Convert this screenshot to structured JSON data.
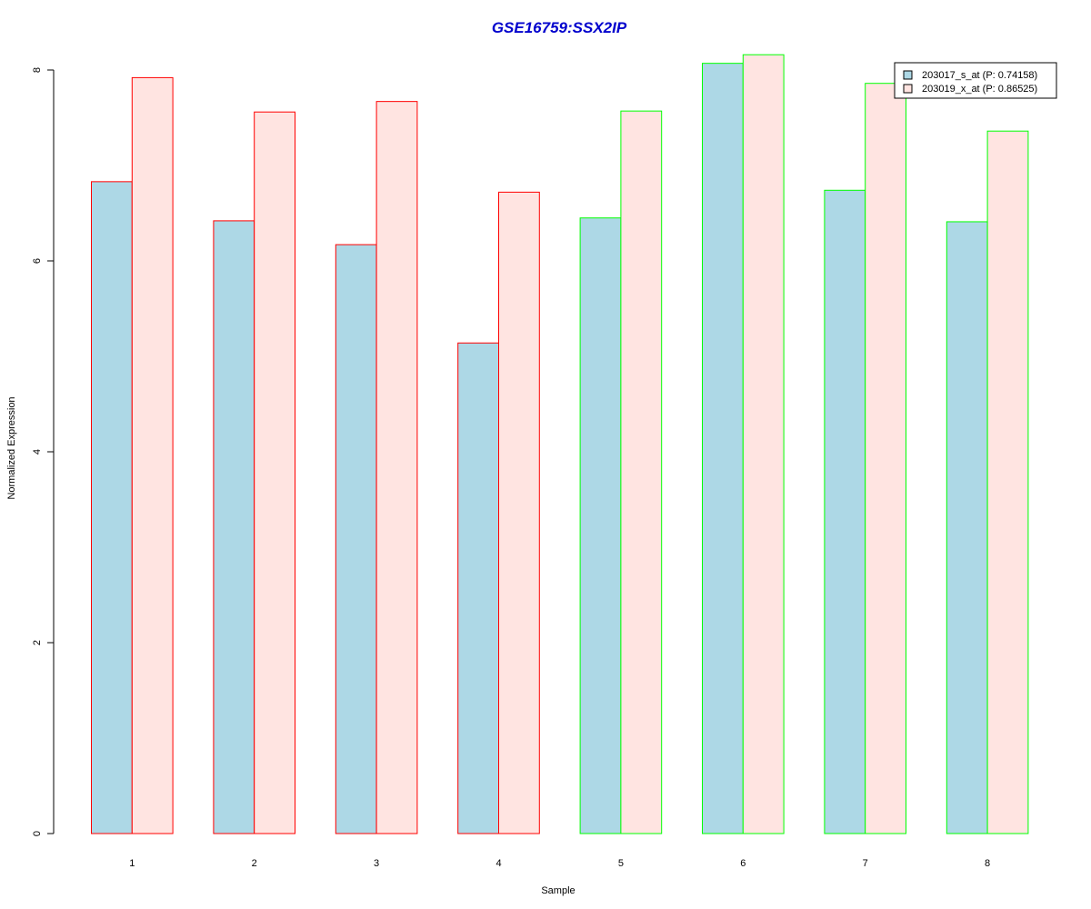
{
  "chart_data": {
    "type": "bar",
    "title": "GSE16759:SSX2IP",
    "xlabel": "Sample",
    "ylabel": "Normalized Expression",
    "categories": [
      "1",
      "2",
      "3",
      "4",
      "5",
      "6",
      "7",
      "8"
    ],
    "yticks": [
      "0",
      "2",
      "4",
      "6",
      "8"
    ],
    "ylim": [
      0,
      8
    ],
    "legend_position": "top-right",
    "grid": false,
    "series": [
      {
        "name": "203017_s_at (P: 0.74158)",
        "color": "#add8e6",
        "values": [
          6.83,
          6.42,
          6.17,
          5.14,
          6.45,
          8.07,
          6.74,
          6.41
        ]
      },
      {
        "name": "203019_x_at (P: 0.86525)",
        "color": "#ffe4e1",
        "values": [
          7.92,
          7.56,
          7.67,
          6.72,
          7.57,
          8.16,
          7.86,
          7.36
        ]
      }
    ],
    "group_border_colors": [
      "#ff0000",
      "#ff0000",
      "#ff0000",
      "#ff0000",
      "#00ff00",
      "#00ff00",
      "#00ff00",
      "#00ff00"
    ],
    "title_color": "#0000cd"
  }
}
